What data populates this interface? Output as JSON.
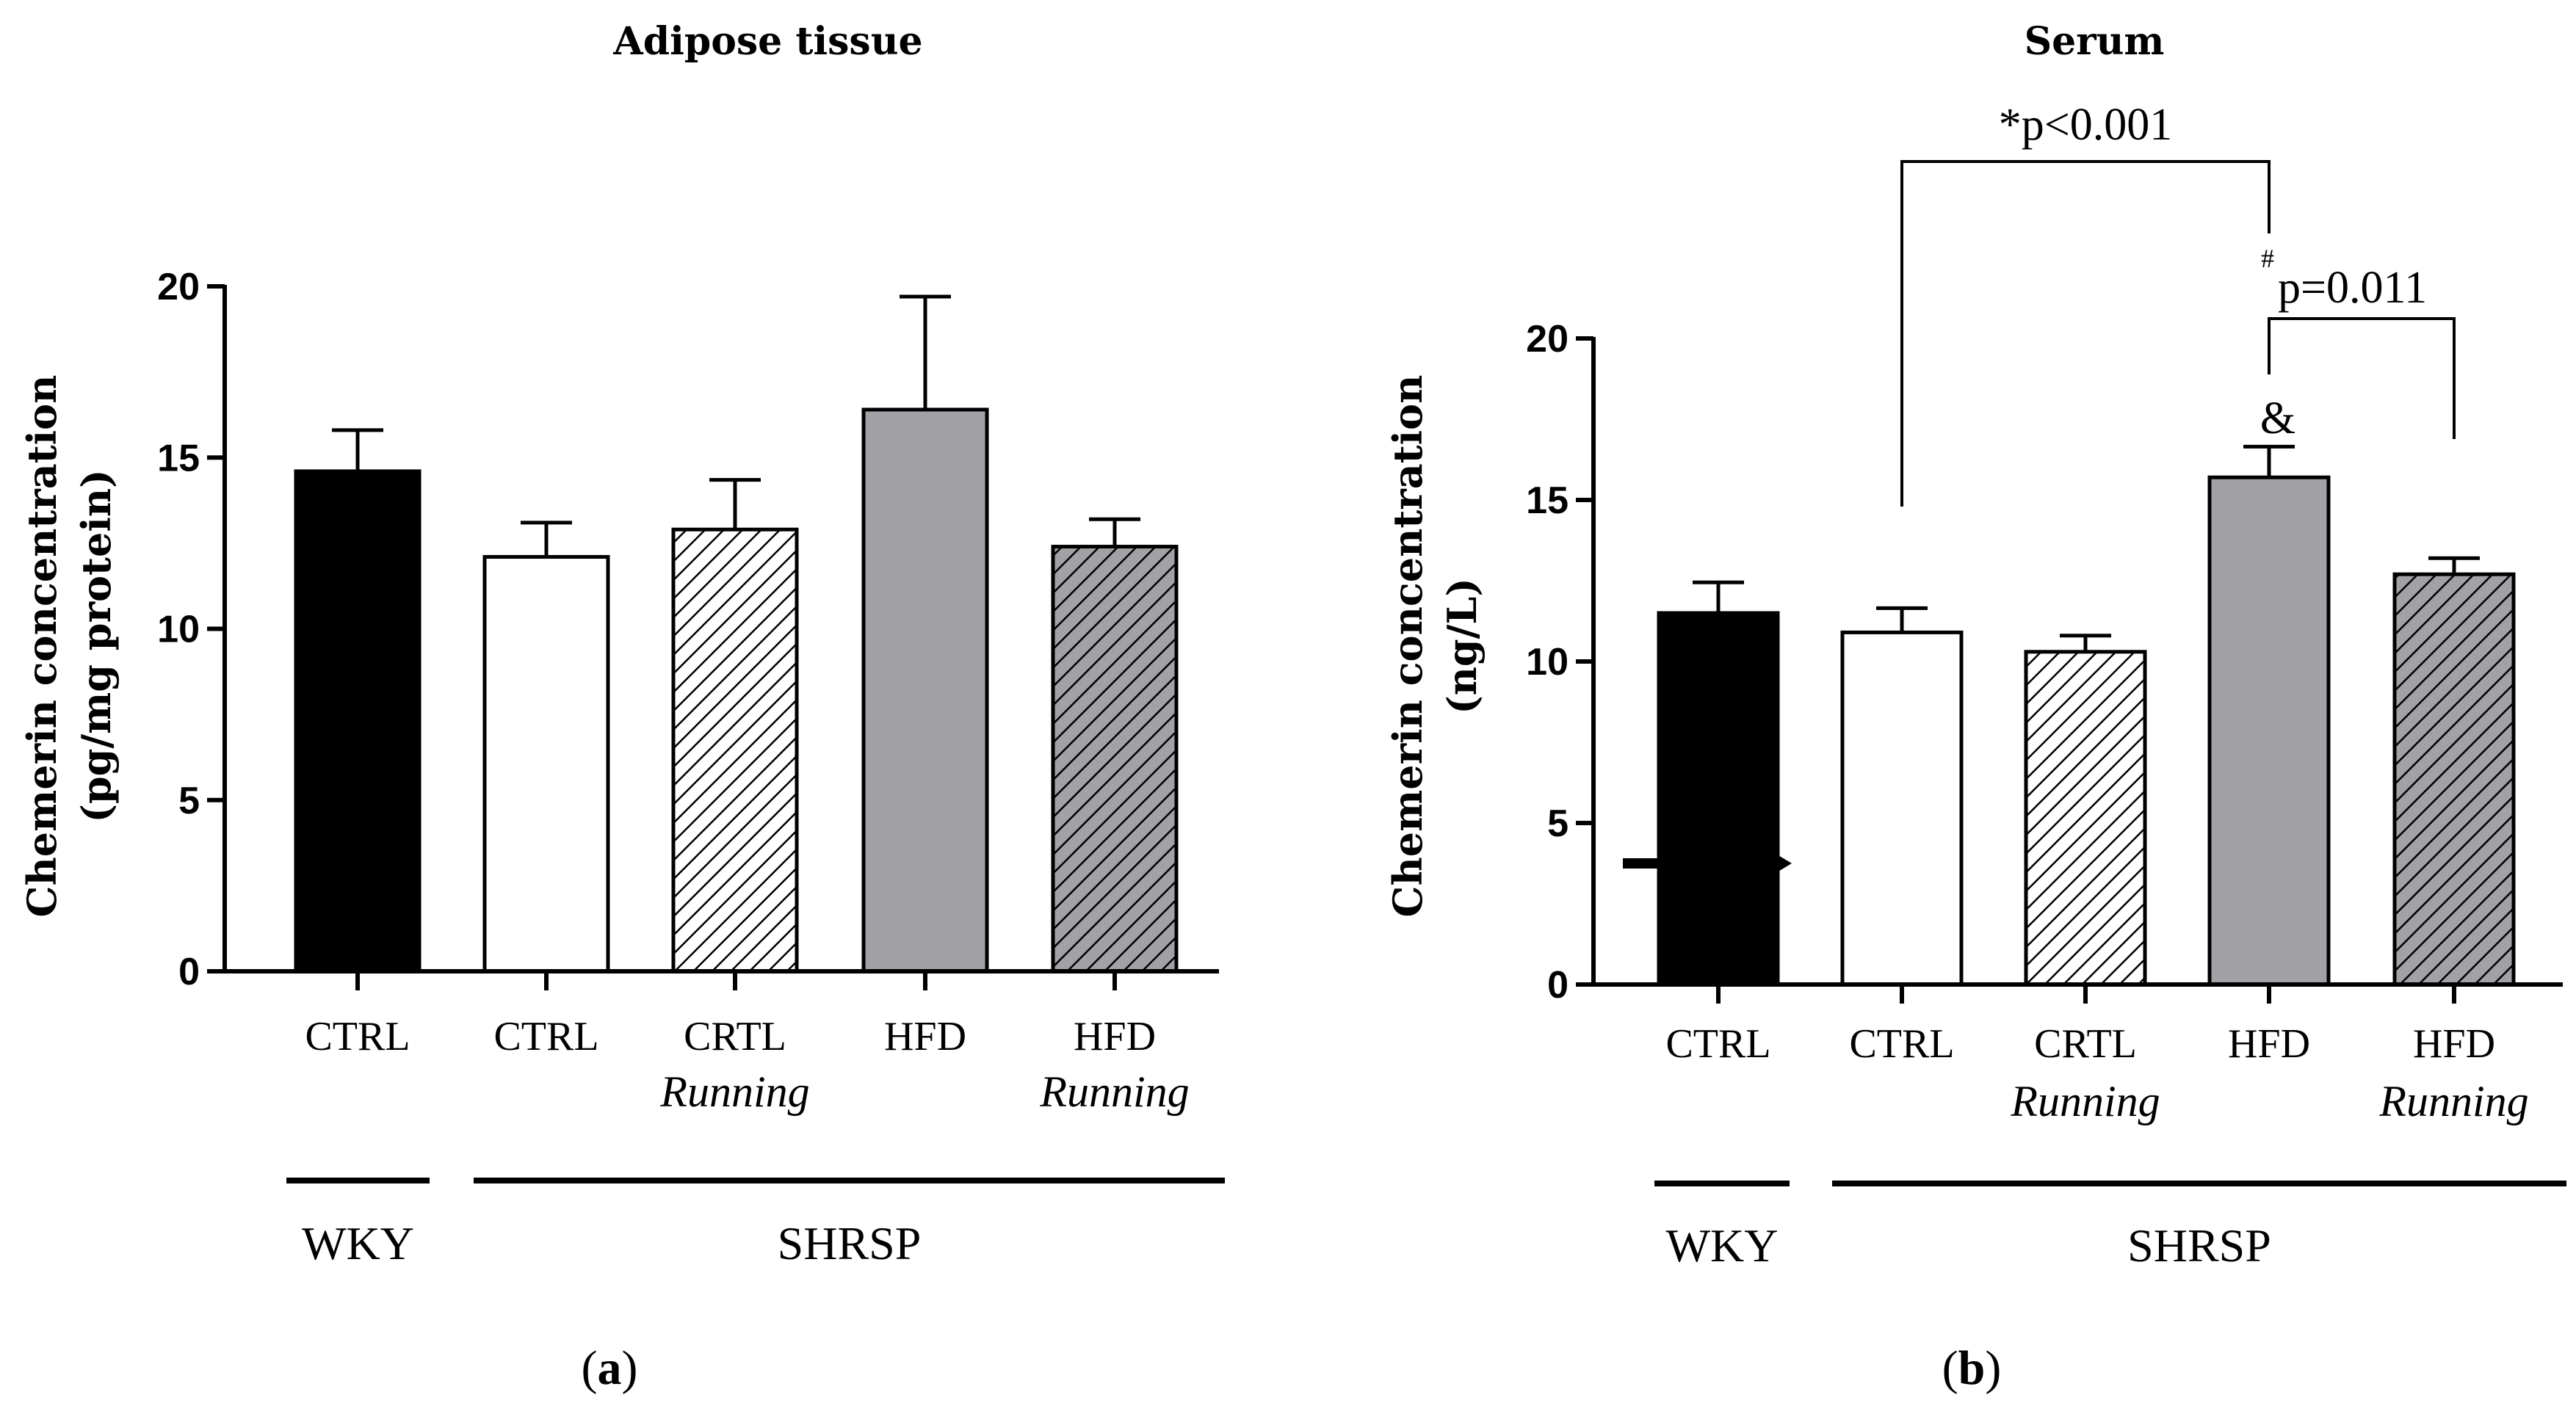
{
  "chart_data": [
    {
      "type": "bar",
      "title": "Adipose tissue",
      "ylabel_line1": "Chemerin concentration",
      "ylabel_line2": "(pg/mg protein)",
      "ylim": [
        0,
        20
      ],
      "yticks": [
        "0",
        "5",
        "10",
        "15",
        "20"
      ],
      "categories": [
        "CTRL",
        "CTRL",
        "CRTL",
        "HFD",
        "HFD"
      ],
      "categories_line2": [
        "",
        "",
        "Running",
        "",
        "Running"
      ],
      "values": [
        14.6,
        12.1,
        12.9,
        16.4,
        12.4
      ],
      "errors": [
        1.2,
        1.0,
        1.45,
        3.3,
        0.8
      ],
      "fills": [
        "black",
        "white",
        "hatch-light",
        "gray",
        "hatch-dark"
      ],
      "groups": [
        {
          "label": "WKY",
          "from": 0,
          "to": 0
        },
        {
          "label": "SHRSP",
          "from": 1,
          "to": 4
        }
      ],
      "panel_label": "a"
    },
    {
      "type": "bar",
      "title": "Serum",
      "ylabel_line1": "Chemerin concentration",
      "ylabel_line2": "(ng/L)",
      "ylim": [
        0,
        20
      ],
      "yticks": [
        "0",
        "5",
        "10",
        "15",
        "20"
      ],
      "categories": [
        "CTRL",
        "CTRL",
        "CRTL",
        "HFD",
        "HFD"
      ],
      "categories_line2": [
        "",
        "",
        "Running",
        "",
        "Running"
      ],
      "values": [
        11.5,
        10.9,
        10.3,
        15.7,
        12.7
      ],
      "errors": [
        0.95,
        0.75,
        0.5,
        0.95,
        0.5
      ],
      "fills": [
        "black",
        "white",
        "hatch-light",
        "gray",
        "hatch-dark"
      ],
      "groups": [
        {
          "label": "WKY",
          "from": 0,
          "to": 0
        },
        {
          "label": "SHRSP",
          "from": 1,
          "to": 4
        }
      ],
      "annotations": {
        "sig1": {
          "prefix": "*",
          "text": "p<0.001",
          "from": 1,
          "to": 3
        },
        "sig2": {
          "prefix": "#",
          "text": "p=0.011",
          "from": 3,
          "to": 4
        },
        "amp": {
          "text": "&",
          "index": 3
        }
      },
      "panel_label": "b"
    }
  ],
  "colors": {
    "black": "#000000",
    "gray": "#a2a2a6",
    "white": "#ffffff",
    "hatch_dark_bg": "#a2a2a6"
  }
}
